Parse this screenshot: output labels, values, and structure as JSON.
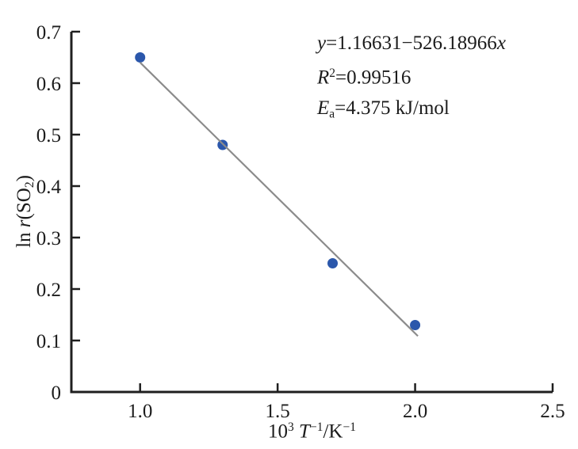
{
  "figure": {
    "background": "#ffffff"
  },
  "chart_data": {
    "type": "scatter",
    "title": "",
    "xlabel": "10³ T⁻¹/K⁻¹",
    "ylabel": "ln r(SO₂)",
    "xlabel_parts": [
      {
        "t": "10"
      },
      {
        "t": "3",
        "style": "sup"
      },
      {
        "t": " "
      },
      {
        "t": "T",
        "style": "italic"
      },
      {
        "t": "−1",
        "style": "sup"
      },
      {
        "t": "/K"
      },
      {
        "t": "−1",
        "style": "sup"
      }
    ],
    "ylabel_parts": [
      {
        "t": "ln "
      },
      {
        "t": "r",
        "style": "italic"
      },
      {
        "t": "(SO"
      },
      {
        "t": "2",
        "style": "sub"
      },
      {
        "t": ")"
      }
    ],
    "xlim": [
      0.75,
      2.5
    ],
    "ylim": [
      0,
      0.7
    ],
    "xticks": [
      {
        "v": 1.0,
        "label": "1.0"
      },
      {
        "v": 1.5,
        "label": "1.5"
      },
      {
        "v": 2.0,
        "label": "2.0"
      },
      {
        "v": 2.5,
        "label": "2.5"
      }
    ],
    "yticks": [
      {
        "v": 0,
        "label": "0"
      },
      {
        "v": 0.1,
        "label": "0.1"
      },
      {
        "v": 0.2,
        "label": "0.2"
      },
      {
        "v": 0.3,
        "label": "0.3"
      },
      {
        "v": 0.4,
        "label": "0.4"
      },
      {
        "v": 0.5,
        "label": "0.5"
      },
      {
        "v": 0.6,
        "label": "0.6"
      },
      {
        "v": 0.7,
        "label": "0.7"
      }
    ],
    "points": [
      {
        "x": 1.0,
        "y": 0.65
      },
      {
        "x": 1.3,
        "y": 0.48
      },
      {
        "x": 1.7,
        "y": 0.25
      },
      {
        "x": 2.0,
        "y": 0.13
      }
    ],
    "fit": {
      "intercept": 1.16631,
      "slope": -526.18966,
      "slope_per_axis_unit": -0.52618966,
      "x_start": 1.0,
      "x_end": 2.01
    },
    "annotations": [
      {
        "name": "fit-equation",
        "text": "y=1.16631−526.18966x",
        "parts": [
          {
            "t": "y",
            "style": "italic"
          },
          {
            "t": "=1.16631−526.18966"
          },
          {
            "t": "x",
            "style": "italic"
          }
        ]
      },
      {
        "name": "r-squared",
        "text": "R²=0.99516",
        "parts": [
          {
            "t": "R",
            "style": "italic"
          },
          {
            "t": "2",
            "style": "sup"
          },
          {
            "t": "=0.99516"
          }
        ]
      },
      {
        "name": "activation-energy",
        "text": "Ea=4.375 kJ/mol",
        "parts": [
          {
            "t": "E",
            "style": "italic"
          },
          {
            "t": "a",
            "style": "sub"
          },
          {
            "t": "=4.375 kJ/mol"
          }
        ]
      }
    ],
    "grid": false,
    "legend": null,
    "colors": {
      "point": "#2b57ab",
      "fit_line": "#8b8b8b",
      "axis": "#1f1f1f",
      "text": "#1c1c1c"
    }
  }
}
